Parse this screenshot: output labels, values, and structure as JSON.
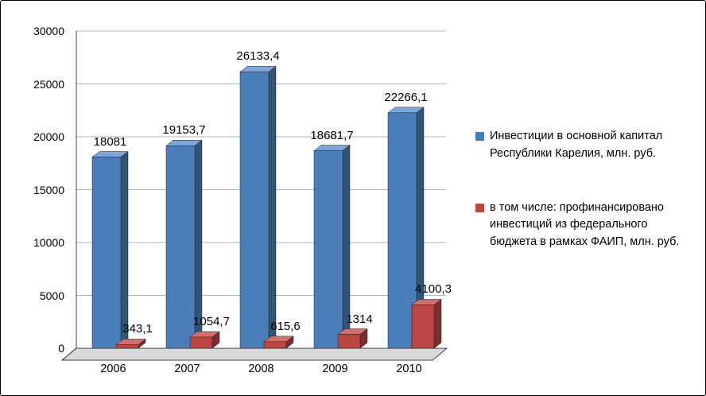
{
  "chart_data": {
    "type": "bar",
    "categories": [
      "2006",
      "2007",
      "2008",
      "2009",
      "2010"
    ],
    "series": [
      {
        "name": "Инвестиции в основной капитал Республики Карелия, млн. руб.",
        "color": "#4a7ebb",
        "top_color": "#7ea6d8",
        "side_color": "#2f5579",
        "values": [
          18081,
          19153.7,
          26133.4,
          18681.7,
          22266.1
        ],
        "value_labels": [
          "18081",
          "19153,7",
          "26133,4",
          "18681,7",
          "22266,1"
        ]
      },
      {
        "name": "в том числе: профинансировано инвестиций из федерального бюджета в рамках ФАИП,  млн. руб.",
        "color": "#bc4542",
        "top_color": "#d0706d",
        "side_color": "#7c2d2b",
        "values": [
          343.1,
          1054.7,
          615.6,
          1314,
          4100.3
        ],
        "value_labels": [
          "343,1",
          "1054,7",
          "615,6",
          "1314",
          "4100,3"
        ]
      }
    ],
    "title": "",
    "xlabel": "",
    "ylabel": "",
    "ylim": [
      0,
      30000
    ],
    "ytick_step": 5000,
    "ytick_labels": [
      "0",
      "5000",
      "10000",
      "15000",
      "20000",
      "25000",
      "30000"
    ],
    "grid": true,
    "legend_position": "right",
    "axis_color": "#404040",
    "gridline_color": "#b3b3b3",
    "floor_color": "#d9d9d9"
  }
}
